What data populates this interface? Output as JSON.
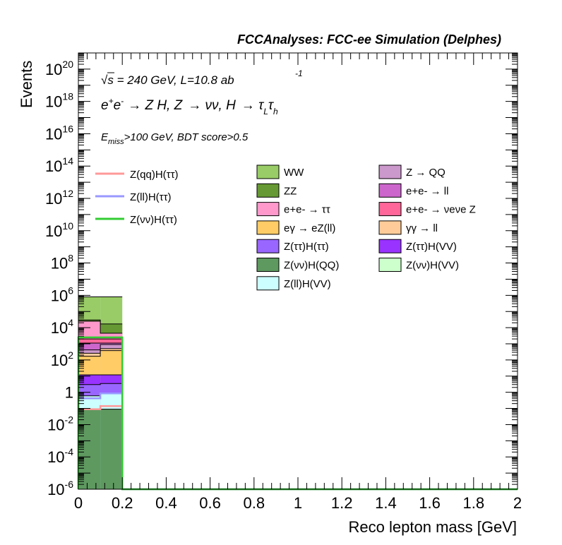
{
  "header": {
    "title": "FCCAnalyses: FCC-ee Simulation (Delphes)"
  },
  "annotations": {
    "sqrt_sym": "√",
    "energy": "s = 240 GeV, L=10.8 ab",
    "lumi_exp": "-1",
    "process": {
      "ee": "e",
      "sup_plus": "+",
      "e2": "e",
      "sup_minus": "-",
      "arrow1": "→ Z H, Z",
      "arrow2": "→ νν, H",
      "arrow3": "→ τ",
      "sub_L": "L",
      "tau2": "τ",
      "sub_h": "h"
    },
    "selection": {
      "E": "E",
      "sub": "miss",
      "rest": ">100 GeV, BDT score>0.5"
    }
  },
  "chart_data": {
    "type": "bar",
    "stacked_histogram": true,
    "xlabel": "Reco lepton mass [GeV]",
    "ylabel": "Events",
    "xlim": [
      0,
      2
    ],
    "ylim": [
      1e-06,
      1e+21
    ],
    "yscale": "log",
    "x_ticks": [
      "0",
      "0.2",
      "0.4",
      "0.6",
      "0.8",
      "1",
      "1.2",
      "1.4",
      "1.6",
      "1.8",
      "2"
    ],
    "y_ticks": [
      {
        "base": "10",
        "exp": "20",
        "value": 1e+20
      },
      {
        "base": "10",
        "exp": "18",
        "value": 1e+18
      },
      {
        "base": "10",
        "exp": "16",
        "value": 1e+16
      },
      {
        "base": "10",
        "exp": "14",
        "value": 100000000000000.0
      },
      {
        "base": "10",
        "exp": "12",
        "value": 1000000000000.0
      },
      {
        "base": "10",
        "exp": "10",
        "value": 10000000000.0
      },
      {
        "base": "10",
        "exp": "8",
        "value": 100000000.0
      },
      {
        "base": "10",
        "exp": "6",
        "value": 1000000.0
      },
      {
        "base": "10",
        "exp": "4",
        "value": 10000.0
      },
      {
        "base": "10",
        "exp": "2",
        "value": 100.0
      },
      {
        "base": "1",
        "exp": "",
        "value": 1
      },
      {
        "base": "10",
        "exp": "-2",
        "value": 0.01
      },
      {
        "base": "10",
        "exp": "-4",
        "value": 0.0001
      },
      {
        "base": "10",
        "exp": "-6",
        "value": 1e-06
      }
    ],
    "bins": [
      [
        0,
        0.1
      ],
      [
        0.1,
        0.2
      ]
    ],
    "stack": [
      {
        "name": "Z(νν)H(QQ)",
        "color": "#5e9960",
        "tops": [
          0.09,
          0.09
        ]
      },
      {
        "name": "Z(ll)H(VV)",
        "color": "#ccffff",
        "tops": [
          0.6,
          0.9
        ]
      },
      {
        "name": "Z(ττ)H(ττ)",
        "color": "#9966ff",
        "tops": [
          3,
          3.5
        ]
      },
      {
        "name": "Z(ττ)H(VV)",
        "color": "#9933ff",
        "tops": [
          12,
          12
        ]
      },
      {
        "name": "eγ → eZ(ll)",
        "color": "#ffcc66",
        "tops": [
          170,
          380
        ]
      },
      {
        "name": "γγ → ll",
        "color": "#ffcc99",
        "tops": [
          260,
          500
        ]
      },
      {
        "name": "Z → QQ",
        "color": "#cc99cc",
        "tops": [
          420,
          900
        ]
      },
      {
        "name": "e+e- → ll",
        "color": "#cc66cc",
        "tops": [
          1100,
          1100
        ]
      },
      {
        "name": "e+e- → νeνe Z",
        "color": "#ff6699",
        "tops": [
          2000,
          2000
        ]
      },
      {
        "name": "e+e- → ττ",
        "color": "#ff99cc",
        "tops": [
          25000,
          4500
        ]
      },
      {
        "name": "ZZ",
        "color": "#669933",
        "tops": [
          30000,
          17000
        ]
      },
      {
        "name": "WW",
        "color": "#99cc66",
        "tops": [
          800000,
          800000
        ]
      }
    ],
    "signals": [
      {
        "name": "Z(qq)H(ττ)",
        "color": "#ff9999",
        "values": [
          0.09,
          0.14
        ]
      },
      {
        "name": "Z(ll)H(ττ)",
        "color": "#9999ff",
        "values": [
          0.42,
          0.85
        ]
      },
      {
        "name": "Z(νν)H(ττ)",
        "color": "#33cc33",
        "values": [
          2500,
          2500
        ]
      }
    ],
    "legend": {
      "signals": [
        "Z(qq)H(ττ)",
        "Z(ll)H(ττ)",
        "Z(νν)H(ττ)"
      ],
      "col1": [
        "WW",
        "ZZ",
        "e+e- → ττ",
        "eγ → eZ(ll)",
        "Z(ττ)H(ττ)",
        "Z(νν)H(QQ)",
        "Z(ll)H(VV)"
      ],
      "col2": [
        "Z → QQ",
        "e+e- → ll",
        "e+e- → νeνe Z",
        "γγ → ll",
        "Z(ττ)H(VV)",
        "Z(νν)H(VV)"
      ]
    },
    "legend_colors": {
      "WW": "#99cc66",
      "ZZ": "#669933",
      "e+e- → ττ": "#ff99cc",
      "eγ → eZ(ll)": "#ffcc66",
      "Z(ττ)H(ττ)": "#9966ff",
      "Z(νν)H(QQ)": "#5e9960",
      "Z(ll)H(VV)": "#ccffff",
      "Z → QQ": "#cc99cc",
      "e+e- → ll": "#cc66cc",
      "e+e- → νeνe Z": "#ff6699",
      "γγ → ll": "#ffcc99",
      "Z(ττ)H(VV)": "#9933ff",
      "Z(νν)H(VV)": "#ccffcc"
    }
  }
}
